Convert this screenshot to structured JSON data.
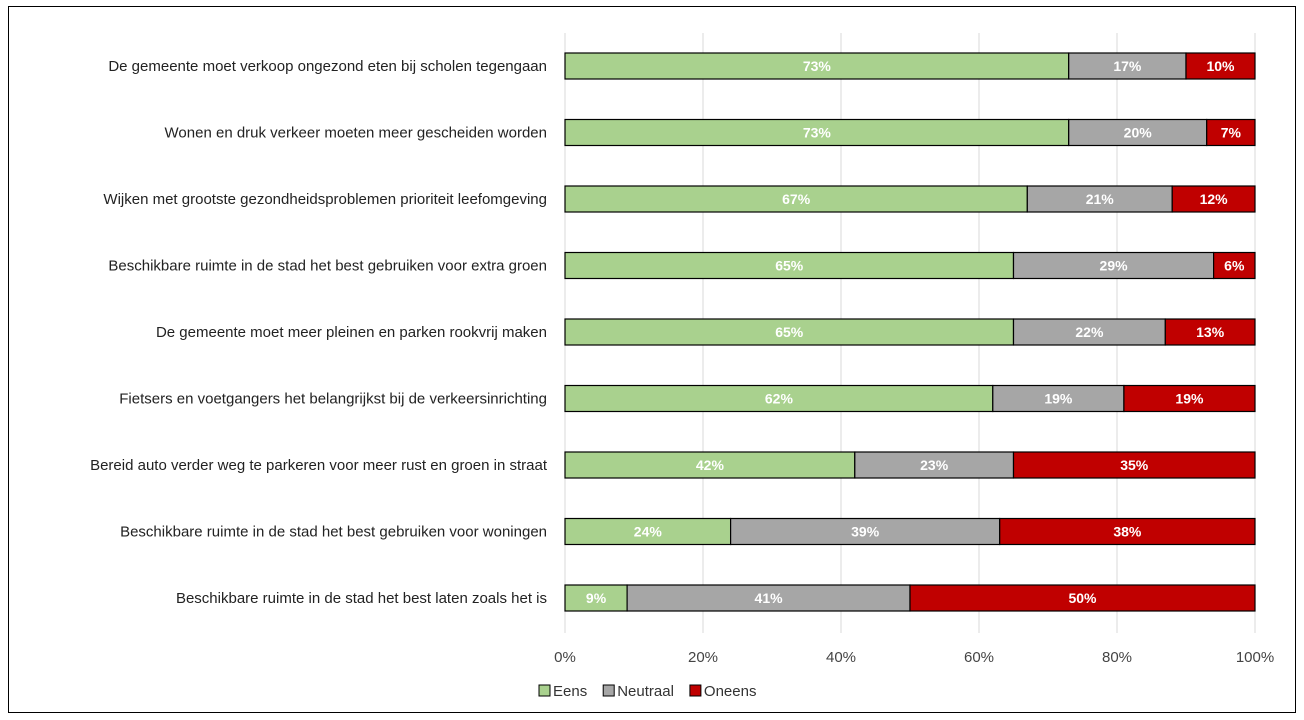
{
  "chart_data": {
    "type": "bar",
    "orientation": "horizontal",
    "stacked": true,
    "title": "",
    "xlabel": "",
    "ylabel": "",
    "xlim": [
      0,
      100
    ],
    "x_ticks": [
      "0%",
      "20%",
      "40%",
      "60%",
      "80%",
      "100%"
    ],
    "grid": true,
    "legend_position": "bottom",
    "categories": [
      "De gemeente moet verkoop ongezond eten bij scholen tegengaan",
      "Wonen en druk verkeer moeten meer gescheiden worden",
      "Wijken met grootste gezondheidsproblemen prioriteit leefomgeving",
      "Beschikbare ruimte in de stad het best gebruiken voor extra groen",
      "De gemeente moet meer pleinen en parken rookvrij maken",
      "Fietsers en voetgangers het belangrijkst bij de verkeersinrichting",
      "Bereid auto verder weg te parkeren voor meer rust en groen in straat",
      "Beschikbare ruimte in de stad het best gebruiken voor woningen",
      "Beschikbare ruimte in de stad het best laten zoals het is"
    ],
    "series": [
      {
        "name": "Eens",
        "color": "#a9d18e",
        "values": [
          73,
          73,
          67,
          65,
          65,
          62,
          42,
          24,
          9
        ],
        "labels": [
          "73%",
          "73%",
          "67%",
          "65%",
          "65%",
          "62%",
          "42%",
          "24%",
          "9%"
        ]
      },
      {
        "name": "Neutraal",
        "color": "#a6a6a6",
        "values": [
          17,
          20,
          21,
          29,
          22,
          19,
          23,
          39,
          41
        ],
        "labels": [
          "17%",
          "20%",
          "21%",
          "29%",
          "22%",
          "19%",
          "23%",
          "39%",
          "41%"
        ]
      },
      {
        "name": "Oneens",
        "color": "#c00000",
        "values": [
          10,
          7,
          12,
          6,
          13,
          19,
          35,
          38,
          50
        ],
        "labels": [
          "10%",
          "7%",
          "12%",
          "6%",
          "13%",
          "19%",
          "35%",
          "38%",
          "50%"
        ]
      }
    ]
  }
}
